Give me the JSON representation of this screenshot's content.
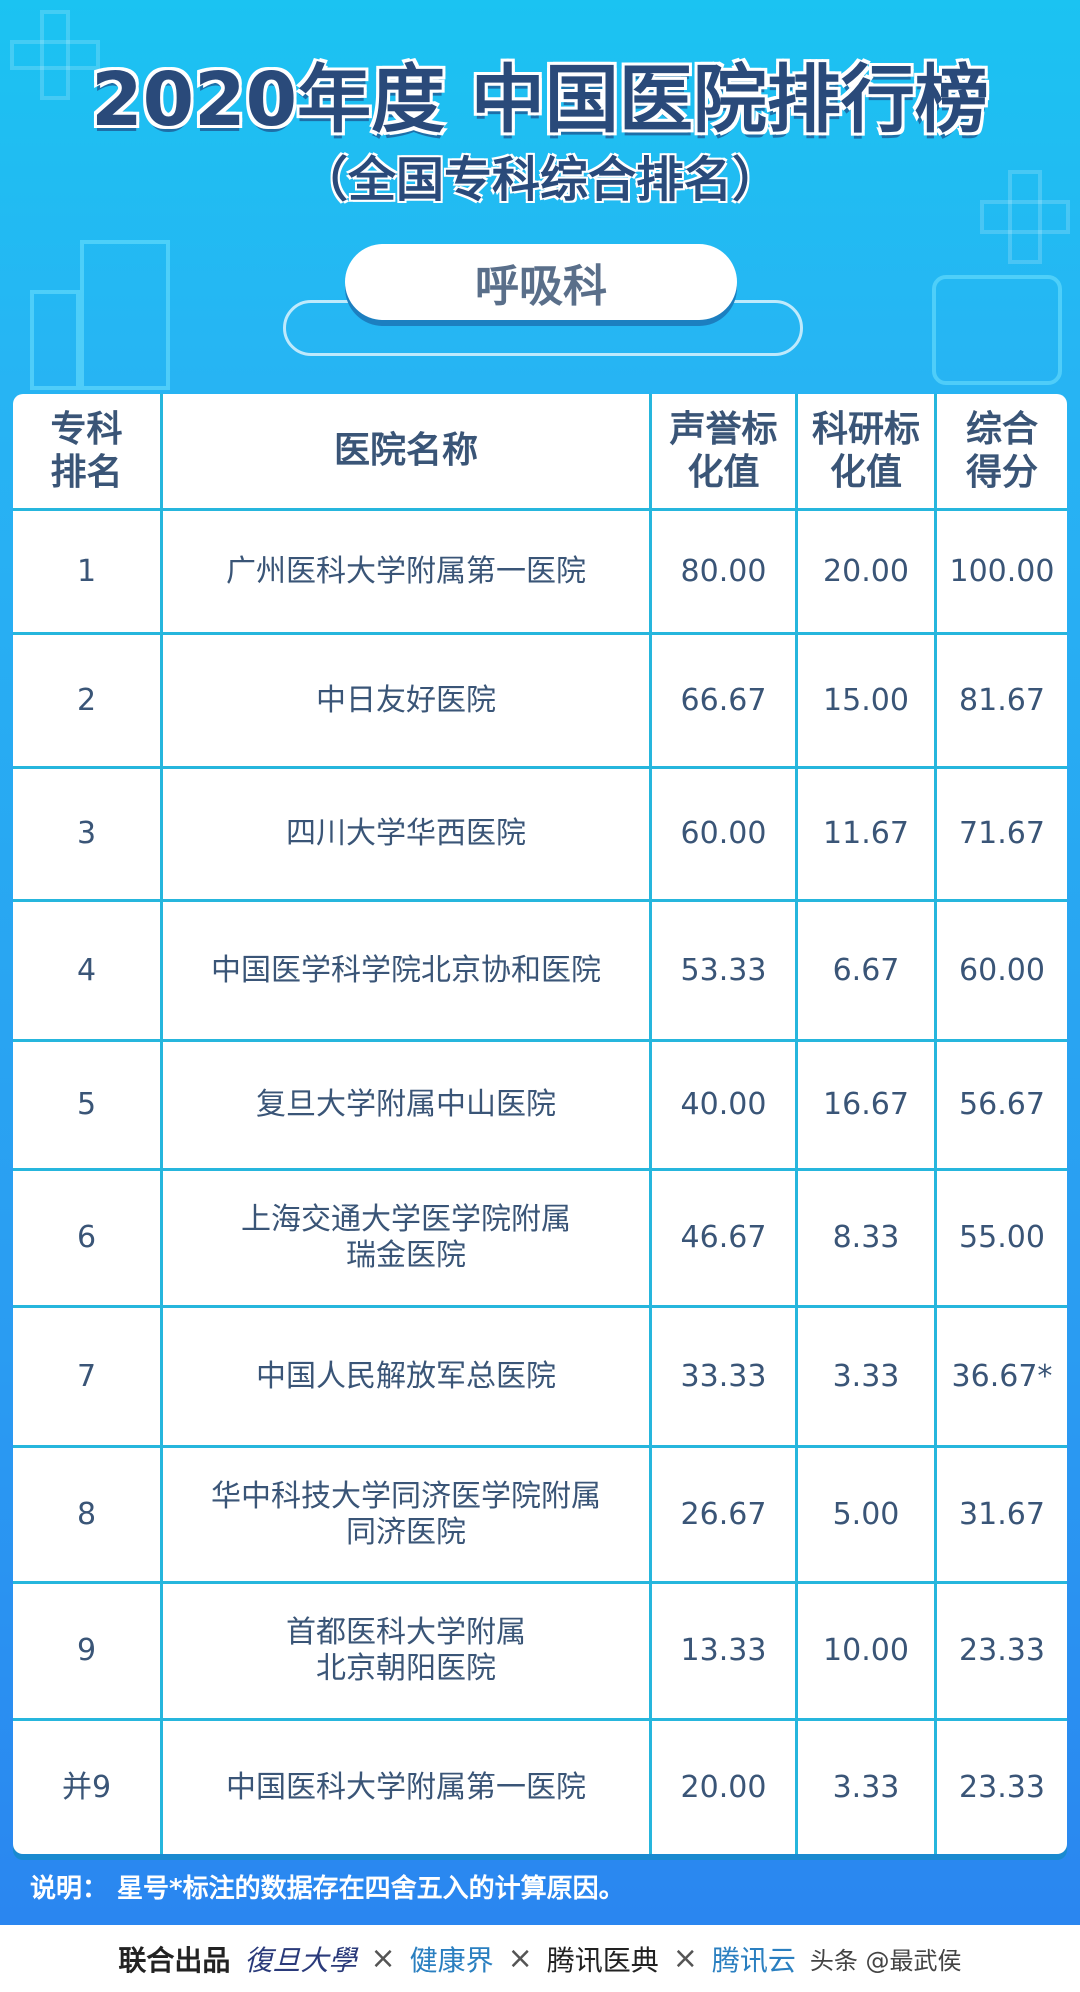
{
  "title": "2020年度 中国医院排行榜",
  "subtitle": "（全国专科综合排名）",
  "department": "呼吸科",
  "table": {
    "headers": [
      "专科\n排名",
      "医院名称",
      "声誉标\n化值",
      "科研标\n化值",
      "综合\n得分"
    ],
    "rows": [
      [
        "1",
        "广州医科大学附属第一医院",
        "80.00",
        "20.00",
        "100.00"
      ],
      [
        "2",
        "中日友好医院",
        "66.67",
        "15.00",
        "81.67"
      ],
      [
        "3",
        "四川大学华西医院",
        "60.00",
        "11.67",
        "71.67"
      ],
      [
        "4",
        "中国医学科学院北京协和医院",
        "53.33",
        "6.67",
        "60.00"
      ],
      [
        "5",
        "复旦大学附属中山医院",
        "40.00",
        "16.67",
        "56.67"
      ],
      [
        "6",
        "上海交通大学医学院附属\n瑞金医院",
        "46.67",
        "8.33",
        "55.00"
      ],
      [
        "7",
        "中国人民解放军总医院",
        "33.33",
        "3.33",
        "36.67*"
      ],
      [
        "8",
        "华中科技大学同济医学院附属\n同济医院",
        "26.67",
        "5.00",
        "31.67"
      ],
      [
        "9",
        "首都医科大学附属\n北京朝阳医院",
        "13.33",
        "10.00",
        "23.33"
      ],
      [
        "并9",
        "中国医科大学附属第一医院",
        "20.00",
        "3.33",
        "23.33"
      ]
    ]
  },
  "note": "说明：  星号*标注的数据存在四舍五入的计算原因。",
  "footer": {
    "label": "联合出品",
    "logos": [
      "復旦大學",
      "健康界",
      "腾讯医典",
      "腾讯云"
    ],
    "separator": "×",
    "watermark": "头条 @最武侯"
  },
  "colors": {
    "title": "#2a4a7a",
    "grid": "#26b6dd",
    "background": "#27b4f3"
  }
}
